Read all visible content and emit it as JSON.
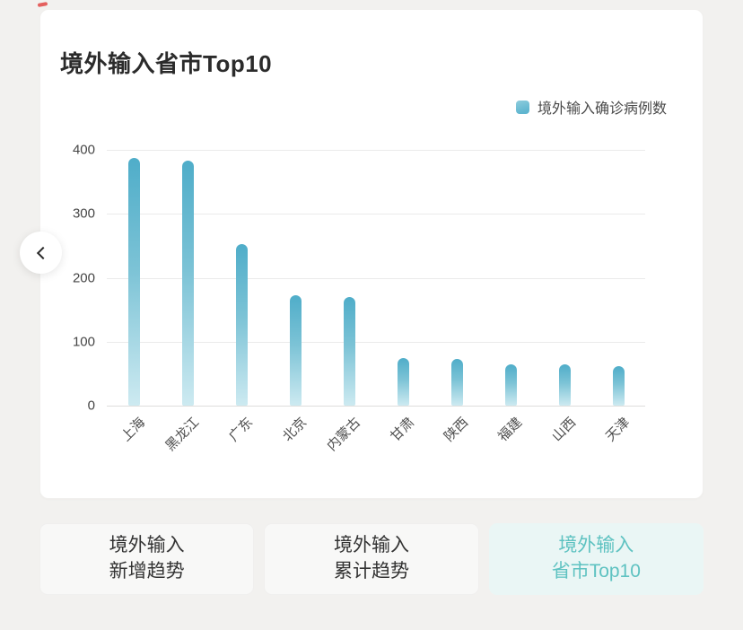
{
  "card": {
    "title": "境外输入省市Top10",
    "legend": {
      "label": "境外输入确诊病例数",
      "color": "#5fb5cf"
    }
  },
  "chart_data": {
    "type": "bar",
    "title": "境外输入省市Top10",
    "series_name": "境外输入确诊病例数",
    "categories": [
      "上海",
      "黑龙江",
      "广东",
      "北京",
      "内蒙古",
      "甘肃",
      "陕西",
      "福建",
      "山西",
      "天津"
    ],
    "values": [
      388,
      383,
      253,
      173,
      170,
      74,
      73,
      65,
      64,
      62
    ],
    "xlabel": "",
    "ylabel": "",
    "ylim": [
      0,
      400
    ],
    "yticks": [
      0,
      100,
      200,
      300,
      400
    ],
    "grid": true,
    "legend_position": "top-right",
    "bar_color_top": "#4fadc9",
    "bar_color_bottom": "#cdeaf1"
  },
  "nav": {
    "back_icon": "chevron-left"
  },
  "tabs": [
    {
      "label": "境外输入\n新增趋势",
      "active": false
    },
    {
      "label": "境外输入\n累计趋势",
      "active": false
    },
    {
      "label": "境外输入\n省市Top10",
      "active": true
    }
  ]
}
